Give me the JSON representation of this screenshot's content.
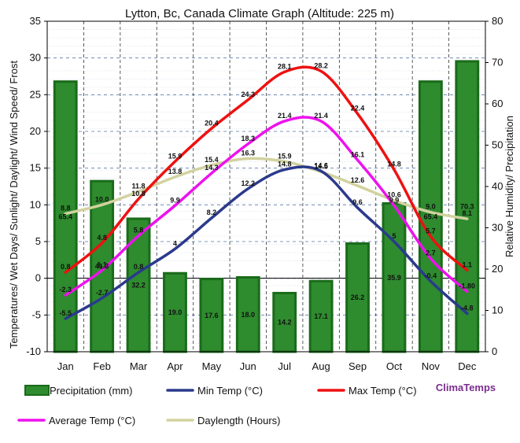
{
  "chart_data": {
    "type": "line+bar",
    "title": "Lytton, Bc, Canada Climate Graph (Altitude: 225 m)",
    "y_left_label": "Temperatures/ Wet Days/ Sunlight/ Daylight/ Wind Speed/ Frost",
    "y_right_label": "Relative Humidity/ Precipitation",
    "y_left_range": [
      -10,
      35
    ],
    "y_left_ticks": [
      "-10",
      "-5",
      "0",
      "5",
      "10",
      "15",
      "20",
      "25",
      "30",
      "35"
    ],
    "y_right_range": [
      0,
      80
    ],
    "y_right_ticks": [
      "0",
      "10",
      "20",
      "30",
      "40",
      "50",
      "60",
      "70",
      "80"
    ],
    "categories": [
      "Jan",
      "Feb",
      "Mar",
      "Apr",
      "May",
      "Jun",
      "Jul",
      "Aug",
      "Sep",
      "Oct",
      "Nov",
      "Dec"
    ],
    "precipitation": {
      "name": "Precipitation (mm)",
      "axis": "right",
      "color": "#2e8b2e",
      "edge": "#1a6b1a",
      "values": [
        65.4,
        41.3,
        32.2,
        19.0,
        17.6,
        18.0,
        14.2,
        17.1,
        26.2,
        35.9,
        65.4,
        70.3
      ],
      "labels": [
        "65.4",
        "41.3",
        "32.2",
        "19.0",
        "17.6",
        "18.0",
        "14.2",
        "17.1",
        "26.2",
        "35.9",
        "65.4",
        "70.3"
      ]
    },
    "lines": [
      {
        "name": "Min Temp (°C)",
        "color": "#2b3a8c",
        "values": [
          -5.5,
          -2.7,
          0.8,
          4,
          8.2,
          12.2,
          14.8,
          14.6,
          9.6,
          5,
          -0.4,
          -4.8
        ],
        "labels": [
          "-5.5",
          "-2.7",
          "0.8",
          "4",
          "8.2",
          "12.2",
          "14.8",
          "14.6",
          "9.6",
          "5",
          "-0.4",
          "-4.8"
        ]
      },
      {
        "name": "Max Temp (°C)",
        "color": "#ee1111",
        "values": [
          0.8,
          4.8,
          10.8,
          15.9,
          20.4,
          24.3,
          28.1,
          28.2,
          22.4,
          14.8,
          5.7,
          1.1
        ],
        "labels": [
          "0.8",
          "4.8",
          "10.8",
          "15.9",
          "20.4",
          "24.3",
          "28.1",
          "28.2",
          "22.4",
          "14.8",
          "5.7",
          "1.1"
        ]
      },
      {
        "name": "Average Temp (°C)",
        "color": "#ee11ee",
        "values": [
          -2.3,
          1.1,
          5.8,
          9.9,
          14.3,
          18.3,
          21.4,
          21.4,
          16.1,
          9.9,
          2.7,
          -1.8
        ],
        "labels": [
          "-2.3",
          "1.1",
          "5.8",
          "9.9",
          "14.3",
          "18.3",
          "21.4",
          "21.4",
          "16.1",
          "9.9",
          "2.7",
          "-1.80"
        ]
      },
      {
        "name": "Daylength (Hours)",
        "color": "#d2d2a0",
        "values": [
          8.8,
          10.0,
          11.8,
          13.8,
          15.4,
          16.3,
          15.9,
          14.5,
          12.6,
          10.6,
          9.0,
          8.1
        ],
        "labels": [
          "8.8",
          "10.0",
          "11.8",
          "13.8",
          "15.4",
          "16.3",
          "15.9",
          "14.5",
          "12.6",
          "10.6",
          "9.0",
          "8.1"
        ]
      }
    ],
    "legend_order": [
      "Precipitation (mm)",
      "Min Temp (°C)",
      "Max Temp (°C)",
      "Average Temp (°C)",
      "Daylength (Hours)"
    ],
    "brand": "ClimaTemps",
    "grid": true,
    "legend_position": "bottom"
  }
}
